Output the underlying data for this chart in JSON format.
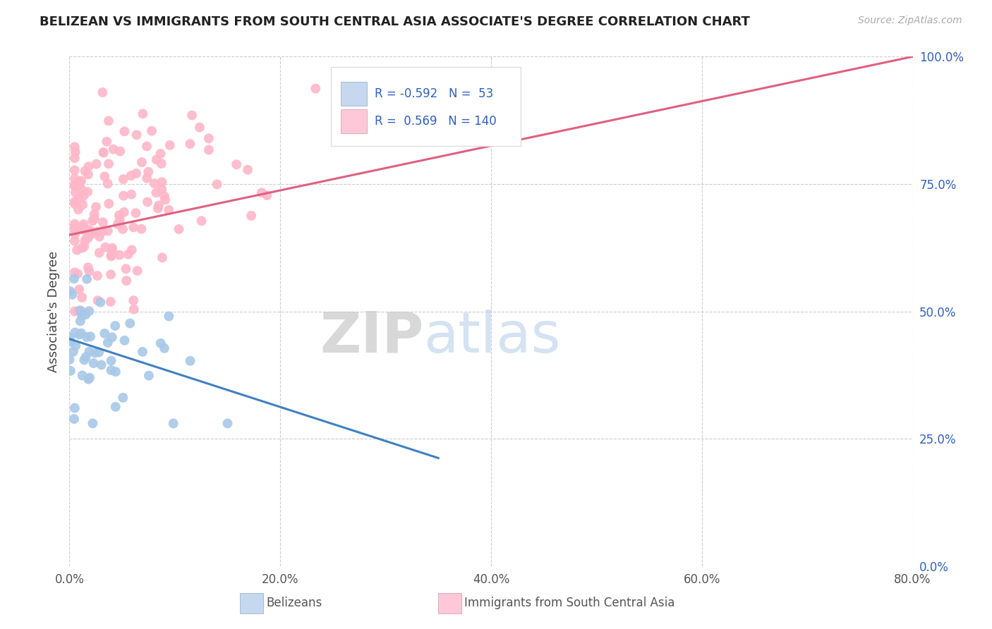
{
  "title": "BELIZEAN VS IMMIGRANTS FROM SOUTH CENTRAL ASIA ASSOCIATE'S DEGREE CORRELATION CHART",
  "source_text": "Source: ZipAtlas.com",
  "ylabel": "Associate's Degree",
  "xlabel_vals": [
    0.0,
    20.0,
    40.0,
    60.0,
    80.0
  ],
  "ylabel_vals": [
    0.0,
    25.0,
    50.0,
    75.0,
    100.0
  ],
  "xlim": [
    0.0,
    80.0
  ],
  "ylim": [
    0.0,
    100.0
  ],
  "blue_R": -0.592,
  "blue_N": 53,
  "pink_R": 0.569,
  "pink_N": 140,
  "blue_marker_color": "#a8c8e8",
  "pink_marker_color": "#ffb6c8",
  "blue_legend_color": "#c5d8f0",
  "pink_legend_color": "#ffc8d8",
  "line_blue_color": "#4080c0",
  "line_pink_color": "#e06080",
  "text_blue_color": "#3060c0",
  "grid_color": "#cccccc",
  "background_color": "#ffffff",
  "legend_label_blue": "Belizeans",
  "legend_label_pink": "Immigrants from South Central Asia"
}
